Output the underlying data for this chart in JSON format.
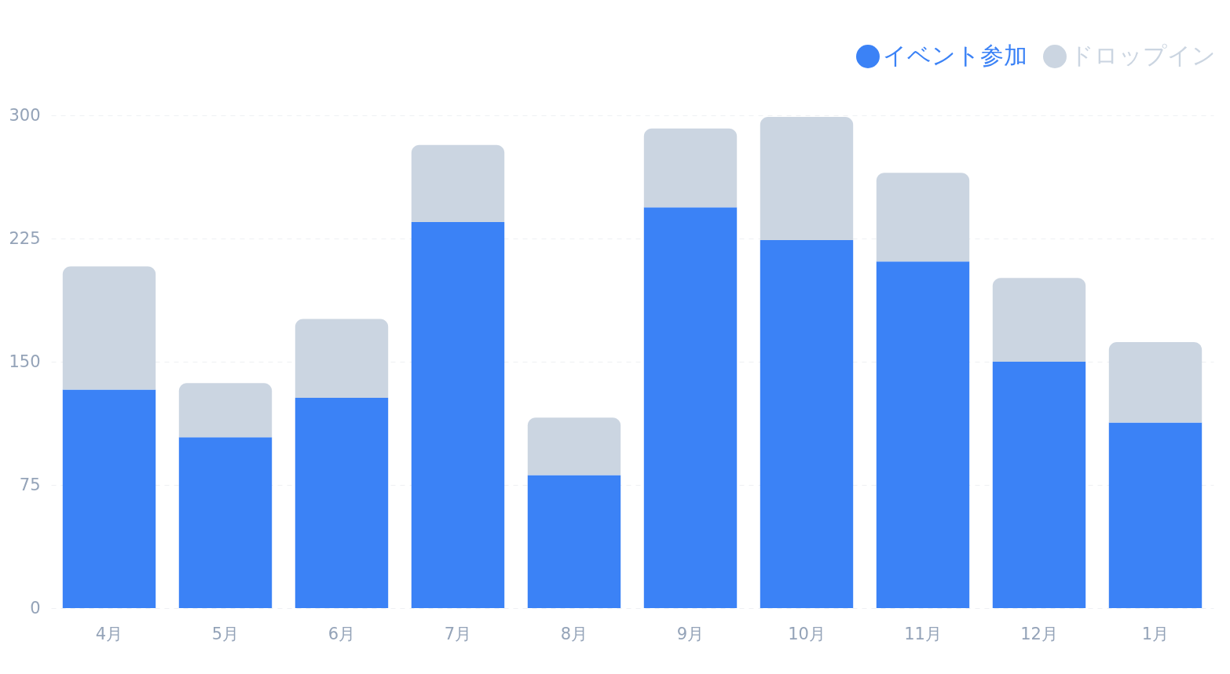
{
  "chart_data": {
    "type": "bar",
    "stacked": true,
    "categories": [
      "4月",
      "5月",
      "6月",
      "7月",
      "8月",
      "9月",
      "10月",
      "11月",
      "12月",
      "1月"
    ],
    "series": [
      {
        "name": "イベント参加",
        "color": "#3b82f6",
        "values": [
          133,
          104,
          128,
          235,
          81,
          244,
          224,
          211,
          150,
          113
        ]
      },
      {
        "name": "ドロップイン",
        "color": "#cbd5e1",
        "values": [
          75,
          33,
          48,
          47,
          35,
          48,
          75,
          54,
          51,
          49
        ]
      }
    ],
    "ylim": [
      0,
      300
    ],
    "yticks": [
      0,
      75,
      150,
      225,
      300
    ],
    "grid": "y",
    "legend": "top right"
  }
}
